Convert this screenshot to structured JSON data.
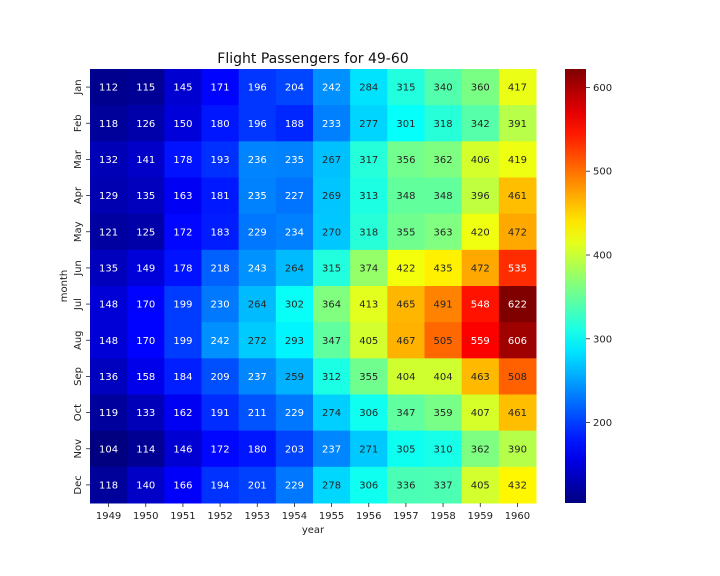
{
  "chart_data": {
    "type": "heatmap",
    "title": "Flight Passengers for 49-60",
    "xlabel": "year",
    "ylabel": "month",
    "x": [
      "1949",
      "1950",
      "1951",
      "1952",
      "1953",
      "1954",
      "1955",
      "1956",
      "1957",
      "1958",
      "1959",
      "1960"
    ],
    "y": [
      "Jan",
      "Feb",
      "Mar",
      "Apr",
      "May",
      "Jun",
      "Jul",
      "Aug",
      "Sep",
      "Oct",
      "Nov",
      "Dec"
    ],
    "values": [
      [
        112,
        115,
        145,
        171,
        196,
        204,
        242,
        284,
        315,
        340,
        360,
        417
      ],
      [
        118,
        126,
        150,
        180,
        196,
        188,
        233,
        277,
        301,
        318,
        342,
        391
      ],
      [
        132,
        141,
        178,
        193,
        236,
        235,
        267,
        317,
        356,
        362,
        406,
        419
      ],
      [
        129,
        135,
        163,
        181,
        235,
        227,
        269,
        313,
        348,
        348,
        396,
        461
      ],
      [
        121,
        125,
        172,
        183,
        229,
        234,
        270,
        318,
        355,
        363,
        420,
        472
      ],
      [
        135,
        149,
        178,
        218,
        243,
        264,
        315,
        374,
        422,
        435,
        472,
        535
      ],
      [
        148,
        170,
        199,
        230,
        264,
        302,
        364,
        413,
        465,
        491,
        548,
        622
      ],
      [
        148,
        170,
        199,
        242,
        272,
        293,
        347,
        405,
        467,
        505,
        559,
        606
      ],
      [
        136,
        158,
        184,
        209,
        237,
        259,
        312,
        355,
        404,
        404,
        463,
        508
      ],
      [
        119,
        133,
        162,
        191,
        211,
        229,
        274,
        306,
        347,
        359,
        407,
        461
      ],
      [
        104,
        114,
        146,
        172,
        180,
        203,
        237,
        271,
        305,
        310,
        362,
        390
      ],
      [
        118,
        140,
        166,
        194,
        201,
        229,
        278,
        306,
        336,
        337,
        405,
        432
      ]
    ],
    "colormap": "jet",
    "vmin": 104,
    "vmax": 622,
    "colorbar_ticks": [
      200,
      300,
      400,
      500,
      600
    ],
    "annotations": true
  }
}
